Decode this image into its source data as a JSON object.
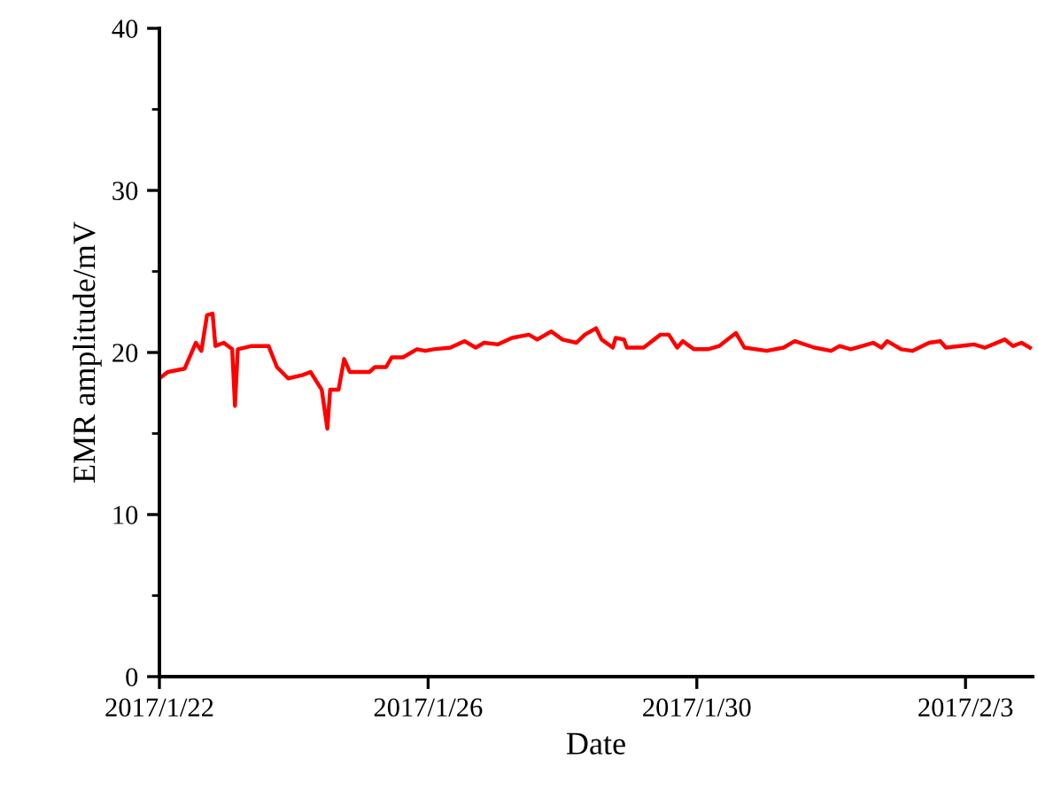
{
  "chart_data": {
    "type": "line",
    "xlabel": "Date",
    "ylabel": "EMR amplitude/mV",
    "x": [
      "2017-01-22T00:00",
      "2017-01-22T03:00",
      "2017-01-22T09:00",
      "2017-01-22T13:00",
      "2017-01-22T15:00",
      "2017-01-22T17:00",
      "2017-01-22T19:00",
      "2017-01-22T20:00",
      "2017-01-22T23:00",
      "2017-01-23T02:00",
      "2017-01-23T03:00",
      "2017-01-23T04:00",
      "2017-01-23T09:00",
      "2017-01-23T15:00",
      "2017-01-23T18:00",
      "2017-01-23T22:00",
      "2017-01-24T03:00",
      "2017-01-24T06:00",
      "2017-01-24T10:00",
      "2017-01-24T12:00",
      "2017-01-24T13:00",
      "2017-01-24T16:00",
      "2017-01-24T18:00",
      "2017-01-24T20:00",
      "2017-01-25T03:00",
      "2017-01-25T05:00",
      "2017-01-25T09:00",
      "2017-01-25T11:00",
      "2017-01-25T15:00",
      "2017-01-25T20:00",
      "2017-01-25T23:00",
      "2017-01-26T02:00",
      "2017-01-26T08:00",
      "2017-01-26T13:00",
      "2017-01-26T17:00",
      "2017-01-26T20:00",
      "2017-01-27T01:00",
      "2017-01-27T06:00",
      "2017-01-27T12:00",
      "2017-01-27T15:00",
      "2017-01-27T20:00",
      "2017-01-28T00:00",
      "2017-01-28T05:00",
      "2017-01-28T08:00",
      "2017-01-28T12:00",
      "2017-01-28T14:00",
      "2017-01-28T18:00",
      "2017-01-28T19:00",
      "2017-01-28T22:00",
      "2017-01-28T23:00",
      "2017-01-29T05:00",
      "2017-01-29T11:00",
      "2017-01-29T14:00",
      "2017-01-29T17:00",
      "2017-01-29T19:00",
      "2017-01-29T23:00",
      "2017-01-30T04:00",
      "2017-01-30T08:00",
      "2017-01-30T11:00",
      "2017-01-30T14:00",
      "2017-01-30T17:00",
      "2017-01-31T01:00",
      "2017-01-31T07:00",
      "2017-01-31T11:00",
      "2017-01-31T18:00",
      "2017-02-01T00:00",
      "2017-02-01T03:00",
      "2017-02-01T07:00",
      "2017-02-01T15:00",
      "2017-02-01T18:00",
      "2017-02-01T20:00",
      "2017-02-02T01:00",
      "2017-02-02T05:00",
      "2017-02-02T11:00",
      "2017-02-02T15:00",
      "2017-02-02T17:00",
      "2017-02-02T22:00",
      "2017-02-03T03:00",
      "2017-02-03T07:00",
      "2017-02-03T14:00",
      "2017-02-03T17:00",
      "2017-02-03T20:00",
      "2017-02-03T23:00"
    ],
    "series": [
      {
        "color": "#ff0000",
        "values": [
          18.4,
          18.8,
          19.0,
          20.6,
          20.1,
          22.3,
          22.4,
          20.4,
          20.6,
          20.2,
          16.7,
          20.2,
          20.4,
          20.4,
          19.1,
          18.4,
          18.6,
          18.8,
          17.7,
          15.3,
          17.7,
          17.7,
          19.6,
          18.8,
          18.8,
          19.1,
          19.1,
          19.7,
          19.7,
          20.2,
          20.1,
          20.2,
          20.3,
          20.7,
          20.3,
          20.6,
          20.5,
          20.9,
          21.1,
          20.8,
          21.3,
          20.8,
          20.6,
          21.1,
          21.5,
          20.8,
          20.3,
          20.9,
          20.8,
          20.3,
          20.3,
          21.1,
          21.1,
          20.3,
          20.7,
          20.2,
          20.2,
          20.4,
          20.8,
          21.2,
          20.3,
          20.1,
          20.3,
          20.7,
          20.3,
          20.1,
          20.4,
          20.2,
          20.6,
          20.3,
          20.7,
          20.2,
          20.1,
          20.6,
          20.7,
          20.3,
          20.4,
          20.5,
          20.3,
          20.8,
          20.4,
          20.6,
          20.3
        ]
      }
    ],
    "xlim": [
      "2017-01-22",
      "2017-02-04"
    ],
    "xticks": [
      {
        "value": "2017-01-22",
        "label": "2017/1/22"
      },
      {
        "value": "2017-01-26",
        "label": "2017/1/26"
      },
      {
        "value": "2017-01-30",
        "label": "2017/1/30"
      },
      {
        "value": "2017-02-03",
        "label": "2017/2/3"
      }
    ],
    "ylim": [
      0,
      40
    ],
    "yticks": [
      0,
      {
        "value": 5,
        "label": null
      },
      10,
      {
        "value": 15,
        "label": null
      },
      20,
      {
        "value": 25,
        "label": null
      },
      30,
      {
        "value": 35,
        "label": null
      },
      40
    ],
    "grid": false,
    "legend": false,
    "marker": "none",
    "line_style": "solid"
  }
}
